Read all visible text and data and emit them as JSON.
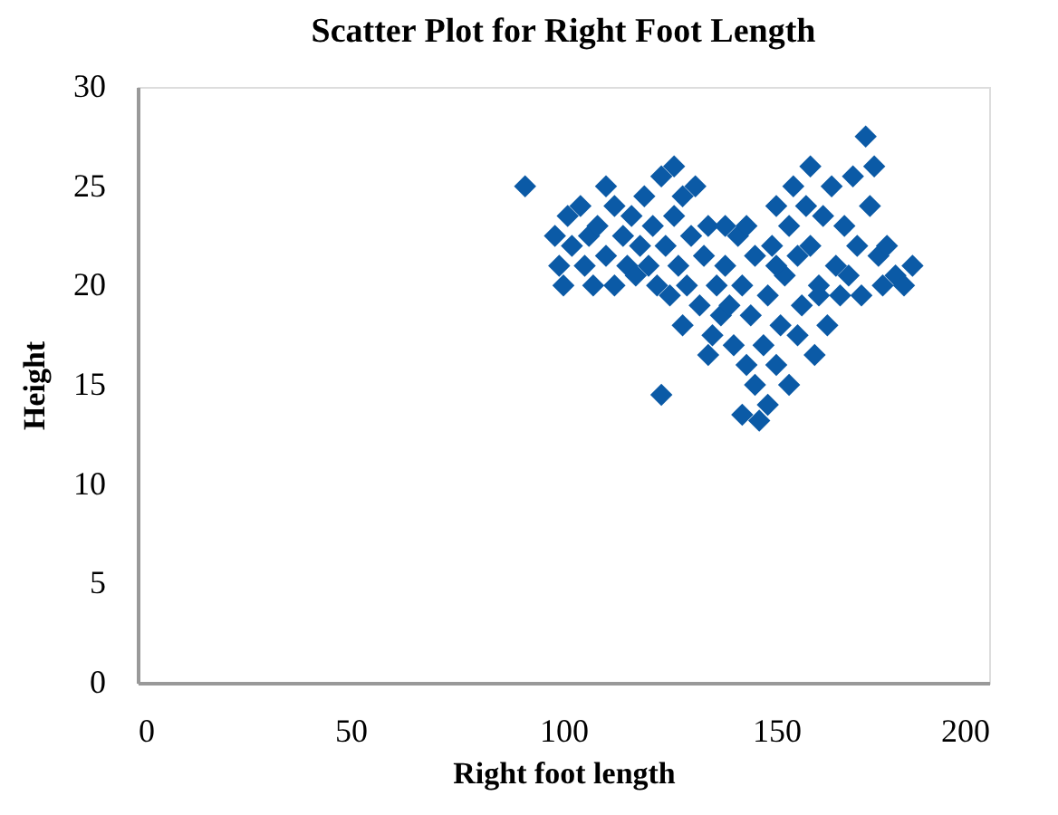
{
  "chart_data": {
    "type": "scatter",
    "title": "Scatter Plot for Right Foot Length",
    "xlabel": "Right foot length",
    "ylabel": "Height",
    "marker": "diamond",
    "grid": false,
    "legend": false,
    "xlim": [
      0,
      200
    ],
    "xticks": [
      0,
      50,
      100,
      150,
      200
    ],
    "ylim": [
      0,
      30
    ],
    "yticks": [
      0,
      5,
      10,
      15,
      20,
      25,
      30
    ],
    "series": [
      {
        "color": "#0b5aa6",
        "x": [
          91,
          98,
          99,
          100,
          101,
          102,
          104,
          105,
          106,
          107,
          108,
          110,
          110,
          112,
          112,
          114,
          115,
          116,
          117,
          118,
          119,
          120,
          121,
          122,
          123,
          124,
          125,
          126,
          126,
          127,
          128,
          129,
          130,
          131,
          132,
          133,
          134,
          135,
          134,
          136,
          137,
          138,
          139,
          140,
          141,
          142,
          143,
          143,
          144,
          145,
          145,
          146,
          142,
          148,
          147,
          148,
          149,
          150,
          150,
          151,
          152,
          153,
          153,
          154,
          155,
          155,
          156,
          157,
          158,
          158,
          159,
          160,
          161,
          162,
          163,
          164,
          165,
          166,
          167,
          168,
          169,
          170,
          171,
          172,
          173,
          174,
          175,
          176,
          178,
          180,
          182,
          123,
          160,
          128,
          138,
          150
        ],
        "values": [
          25,
          22.5,
          21,
          20,
          23.5,
          22,
          24,
          21,
          22.5,
          20,
          23,
          25,
          21.5,
          24,
          20,
          22.5,
          21,
          23.5,
          20.5,
          22,
          24.5,
          21,
          23,
          20,
          25.5,
          22,
          19.5,
          26,
          23.5,
          21,
          24.5,
          20,
          22.5,
          25,
          19,
          21.5,
          23,
          17.5,
          16.5,
          20,
          18.5,
          21,
          19,
          17,
          22.5,
          20,
          16,
          23,
          18.5,
          21.5,
          15,
          13.2,
          13.5,
          14,
          17,
          19.5,
          22,
          24,
          16,
          18,
          20.5,
          15,
          23,
          25,
          17.5,
          21.5,
          19,
          24,
          26,
          22,
          16.5,
          20,
          23.5,
          18,
          25,
          21,
          19.5,
          23,
          20.5,
          25.5,
          22,
          19.5,
          27.5,
          24,
          26,
          21.5,
          20,
          22,
          20.5,
          20,
          21,
          14.5,
          19.5,
          18,
          23,
          21
        ]
      }
    ]
  }
}
